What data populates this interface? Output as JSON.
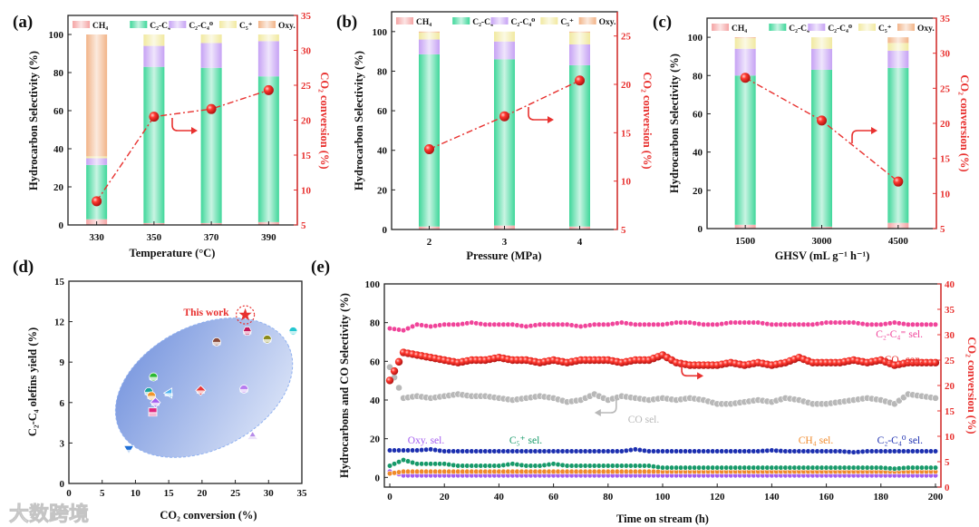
{
  "figure": {
    "watermark": "大数跨境"
  },
  "chart_data": [
    {
      "panel": "(a)",
      "type": "bar",
      "stacked": true,
      "categories": [
        "330",
        "350",
        "370",
        "390"
      ],
      "series": [
        {
          "name": "CH₄",
          "color": "#f4a3a3",
          "values": [
            3,
            1,
            1,
            1.5
          ]
        },
        {
          "name": "C₂-C₄⁼",
          "color": "#3fd79a",
          "values": [
            28.5,
            82,
            81.5,
            76.5
          ]
        },
        {
          "name": "C₂-C₄⁰",
          "color": "#c6a2f4",
          "values": [
            3.5,
            11,
            13,
            18.5
          ]
        },
        {
          "name": "C₅⁺",
          "color": "#f1e9a0",
          "values": [
            1,
            6,
            4.5,
            3.5
          ]
        },
        {
          "name": "Oxy.",
          "color": "#f2b488",
          "values": [
            64,
            0,
            0,
            0
          ]
        }
      ],
      "line": {
        "name": "CO₂ conversion",
        "color": "#e8312f",
        "values": [
          8.4,
          20.5,
          21.6,
          24.3
        ]
      },
      "xlabel": "Temperature (°C)",
      "ylabel": "Hydrocarbon Selectivity (%)",
      "y2label": "CO₂ conversion (%)",
      "ylim": [
        0,
        110
      ],
      "yticks": [
        0,
        20,
        40,
        60,
        80,
        100
      ],
      "y2lim": [
        5,
        35
      ],
      "y2ticks": [
        5,
        10,
        15,
        20,
        25,
        30,
        35
      ]
    },
    {
      "panel": "(b)",
      "type": "bar",
      "stacked": true,
      "categories": [
        "2",
        "3",
        "4"
      ],
      "series": [
        {
          "name": "CH₄",
          "color": "#f4a3a3",
          "values": [
            1.5,
            2,
            1.5
          ]
        },
        {
          "name": "C₂-C₄⁼",
          "color": "#3fd79a",
          "values": [
            87,
            84,
            81.5
          ]
        },
        {
          "name": "C₂-C₄⁰",
          "color": "#c6a2f4",
          "values": [
            7.5,
            9,
            10.5
          ]
        },
        {
          "name": "C₅⁺",
          "color": "#f1e9a0",
          "values": [
            3.5,
            5,
            6
          ]
        },
        {
          "name": "Oxy.",
          "color": "#f2b488",
          "values": [
            0.5,
            0,
            0.5
          ]
        }
      ],
      "line": {
        "name": "CO₂ conversion",
        "color": "#e8312f",
        "values": [
          13.3,
          16.7,
          20.4
        ]
      },
      "xlabel": "Pressure (MPa)",
      "ylabel": "Hydrocarbon Selectivity (%)",
      "y2label": "CO₂ conversion (%)",
      "ylim": [
        0,
        110
      ],
      "yticks": [
        0,
        20,
        40,
        60,
        80,
        100
      ],
      "y2lim": [
        5,
        27.5
      ],
      "y2ticks": [
        5,
        10,
        15,
        20,
        25
      ]
    },
    {
      "panel": "(c)",
      "type": "bar",
      "stacked": true,
      "categories": [
        "1500",
        "3000",
        "4500"
      ],
      "series": [
        {
          "name": "CH₄",
          "color": "#f4a3a3",
          "values": [
            2,
            1,
            3
          ]
        },
        {
          "name": "C₂-C₄⁼",
          "color": "#3fd79a",
          "values": [
            78,
            82,
            81
          ]
        },
        {
          "name": "C₂-C₄⁰",
          "color": "#c6a2f4",
          "values": [
            14,
            11,
            9
          ]
        },
        {
          "name": "C₅⁺",
          "color": "#f1e9a0",
          "values": [
            5.5,
            6,
            4
          ]
        },
        {
          "name": "Oxy.",
          "color": "#f2b488",
          "values": [
            0.5,
            0,
            3
          ]
        }
      ],
      "line": {
        "name": "CO₂ conversion",
        "color": "#e8312f",
        "values": [
          26.5,
          20.4,
          11.7
        ]
      },
      "xlabel": "GHSV (mL g⁻¹ h⁻¹)",
      "ylabel": "Hydrocarbon Selectivity (%)",
      "y2label": "CO₂ conversion (%)",
      "ylim": [
        0,
        110
      ],
      "yticks": [
        0,
        20,
        40,
        60,
        80,
        100
      ],
      "y2lim": [
        5,
        35
      ],
      "y2ticks": [
        5,
        10,
        15,
        20,
        25,
        30,
        35
      ]
    },
    {
      "panel": "(d)",
      "type": "scatter",
      "xlabel": "CO₂ conversion (%)",
      "ylabel": "C₂-C₄ olefins yield (%)",
      "xlim": [
        0,
        35
      ],
      "xticks": [
        0,
        5,
        10,
        15,
        20,
        25,
        30,
        35
      ],
      "ylim": [
        0,
        15
      ],
      "yticks": [
        0,
        3,
        6,
        9,
        12,
        15
      ],
      "points": [
        {
          "x": 9,
          "y": 2.5,
          "marker": "triangle-down",
          "color": "#1f6fd6"
        },
        {
          "x": 12,
          "y": 6.8,
          "marker": "circle",
          "color": "#17a39a"
        },
        {
          "x": 12.4,
          "y": 6.5,
          "marker": "circle",
          "color": "#f0962b"
        },
        {
          "x": 12.7,
          "y": 7.9,
          "marker": "circle",
          "color": "#29b830"
        },
        {
          "x": 13,
          "y": 6.0,
          "marker": "diamond",
          "color": "#a35ff0"
        },
        {
          "x": 12.6,
          "y": 5.3,
          "marker": "square",
          "color": "#e0267e"
        },
        {
          "x": 15,
          "y": 6.7,
          "marker": "triangle-left",
          "color": "#4fb3f0"
        },
        {
          "x": 19.8,
          "y": 6.9,
          "marker": "diamond",
          "color": "#e83a3a"
        },
        {
          "x": 22.2,
          "y": 10.5,
          "marker": "circle",
          "color": "#8a4a3a"
        },
        {
          "x": 26.3,
          "y": 7.0,
          "marker": "circle",
          "color": "#b77cf0"
        },
        {
          "x": 26.8,
          "y": 11.3,
          "marker": "hexagon",
          "color": "#c2185b"
        },
        {
          "x": 27.6,
          "y": 3.5,
          "marker": "triangle-up",
          "color": "#b58ae8"
        },
        {
          "x": 29.8,
          "y": 10.7,
          "marker": "circle",
          "color": "#8a8a1a"
        },
        {
          "x": 33.7,
          "y": 11.3,
          "marker": "circle",
          "color": "#25c6d0"
        }
      ],
      "highlight": {
        "label": "This work",
        "x": 26.5,
        "y": 12.5,
        "marker": "star",
        "color": "#e8312f"
      }
    },
    {
      "panel": "(e)",
      "type": "scatter",
      "xlabel": "Time on stream (h)",
      "ylabel": "Hydrocarbons and CO Selectivity (%)",
      "y2label": "CO₂ conversion (%)",
      "xlim": [
        -2,
        202
      ],
      "xticks": [
        0,
        20,
        40,
        60,
        80,
        100,
        120,
        140,
        160,
        180,
        200
      ],
      "ylim": [
        -5,
        100
      ],
      "yticks": [
        0,
        20,
        40,
        60,
        80,
        100
      ],
      "y2lim": [
        0,
        40
      ],
      "y2ticks": [
        0,
        5,
        10,
        15,
        20,
        25,
        30,
        35,
        40
      ],
      "x": [
        0,
        5,
        10,
        15,
        20,
        25,
        30,
        35,
        40,
        45,
        50,
        55,
        60,
        65,
        70,
        75,
        80,
        85,
        90,
        95,
        100,
        105,
        110,
        115,
        120,
        125,
        130,
        135,
        140,
        145,
        150,
        155,
        160,
        165,
        170,
        175,
        180,
        185,
        190,
        195,
        200
      ],
      "series": [
        {
          "key": "olefin",
          "label": "C₂-C₄⁼ sel.",
          "axis": "left",
          "color": "#f0449a",
          "values": [
            77,
            76,
            79,
            78,
            79,
            79,
            80,
            79,
            79,
            79,
            78,
            79,
            79,
            79,
            78,
            79,
            79,
            80,
            79,
            79,
            79,
            80,
            80,
            79,
            79,
            80,
            80,
            80,
            79,
            79,
            79,
            79,
            80,
            80,
            80,
            79,
            79,
            80,
            79,
            79,
            79
          ]
        },
        {
          "key": "co2",
          "label": "CO₂ con.",
          "axis": "right",
          "color": "#e8312f",
          "values": [
            21,
            26.5,
            26,
            25.5,
            25,
            24.5,
            25,
            25,
            25.5,
            25,
            25,
            24.5,
            25,
            24.5,
            25,
            25,
            25,
            24.5,
            25,
            25,
            26,
            24.5,
            24,
            24,
            24,
            24.5,
            24,
            24.5,
            24,
            24.5,
            25.5,
            24.5,
            24.5,
            24.5,
            25,
            24.5,
            25,
            24,
            24.5,
            24.5,
            24.5
          ]
        },
        {
          "key": "co",
          "label": "CO sel.",
          "axis": "left",
          "color": "#b8b8b8",
          "values": [
            57,
            41,
            42,
            41,
            42,
            43,
            42,
            42,
            41,
            40,
            41,
            42,
            41,
            39,
            40,
            43,
            40,
            42,
            41,
            40,
            41,
            40,
            41,
            40,
            38,
            38,
            39,
            40,
            39,
            41,
            40,
            38,
            38,
            39,
            40,
            41,
            40,
            38,
            43,
            42,
            41
          ]
        },
        {
          "key": "paraffin",
          "label": "C₂-C₄⁰ sel.",
          "axis": "left",
          "color": "#1c2fb0",
          "values": [
            14,
            14,
            14,
            14.5,
            13.5,
            13.5,
            13.5,
            13.5,
            13.5,
            13.5,
            13.5,
            13.5,
            13.5,
            13.5,
            13.5,
            13.5,
            13.5,
            13.5,
            14.5,
            13.5,
            13.5,
            13.5,
            13.5,
            13.5,
            13.5,
            13.5,
            13.5,
            13.5,
            14,
            13.5,
            13.5,
            13.5,
            13.5,
            13.5,
            13,
            13.5,
            13.5,
            13.5,
            13.5,
            13.5,
            13.5
          ]
        },
        {
          "key": "c5",
          "label": "C₅⁺ sel.",
          "axis": "left",
          "color": "#179a6a",
          "values": [
            6,
            9,
            7,
            7,
            7,
            6,
            6,
            6,
            6,
            7,
            6,
            6,
            7,
            6,
            6,
            6,
            6,
            6,
            6,
            6,
            5,
            5,
            5,
            5,
            5,
            5,
            5,
            5,
            5,
            5,
            5,
            5,
            5,
            5,
            5,
            5,
            5,
            4.5,
            5,
            5,
            5
          ]
        },
        {
          "key": "ch4",
          "label": "CH₄ sel.",
          "axis": "left",
          "color": "#f08a2b",
          "values": [
            2,
            3,
            3,
            3,
            3,
            3,
            3,
            3,
            3,
            3,
            3,
            3,
            3,
            3,
            3,
            3,
            3,
            3,
            3,
            3,
            3,
            3,
            3,
            3,
            3,
            3,
            3,
            3,
            3,
            3,
            3,
            3,
            3,
            3,
            3,
            3,
            3,
            3,
            3,
            3,
            3
          ]
        },
        {
          "key": "oxy",
          "label": "Oxy. sel.",
          "axis": "left",
          "color": "#a45cf0",
          "values": [
            3,
            1,
            1,
            1,
            1,
            1,
            1,
            1,
            1,
            1,
            1,
            1,
            1,
            1,
            1,
            1,
            1,
            1,
            1,
            1,
            1,
            1,
            1,
            1,
            1,
            1,
            1,
            1,
            1,
            1,
            1,
            1,
            1,
            1,
            1,
            1,
            1,
            1,
            1,
            1,
            1
          ]
        }
      ]
    }
  ]
}
